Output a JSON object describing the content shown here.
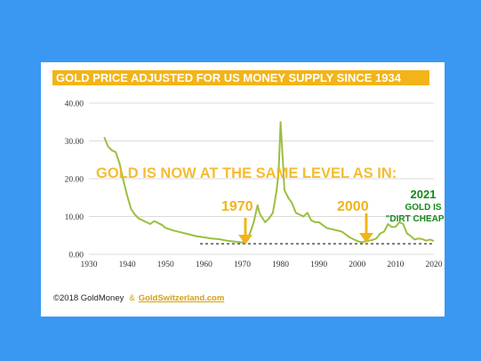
{
  "title": "GOLD PRICE ADJUSTED FOR US MONEY SUPPLY SINCE 1934",
  "colors": {
    "background": "#3a98f2",
    "title_bar": "#f2b418",
    "line": "#9bbf3f",
    "annotation_orange": "#f2b418",
    "annotation_green": "#138a18",
    "baseline": "#333333"
  },
  "annotations": {
    "headline": "GOLD IS NOW AT THE SAME LEVEL AS IN:",
    "year_1970": "1970",
    "year_2000": "2000",
    "year_2021": "2021",
    "gold_is": "GOLD IS",
    "dirt_cheap": "\"DIRT CHEAP\""
  },
  "footer": {
    "copyright": "©2018 GoldMoney",
    "amp": "&",
    "link": "GoldSwitzerland.com"
  },
  "chart_data": {
    "type": "line",
    "title": "GOLD PRICE ADJUSTED FOR US MONEY SUPPLY SINCE 1934",
    "xlabel": "",
    "ylabel": "",
    "xlim": [
      1930,
      2020
    ],
    "ylim": [
      0,
      40
    ],
    "xticks": [
      1930,
      1940,
      1950,
      1960,
      1970,
      1980,
      1990,
      2000,
      2010,
      2020
    ],
    "yticks": [
      0,
      10,
      20,
      30,
      40
    ],
    "ytick_labels": [
      "0.00",
      "10.00",
      "20.00",
      "30.00",
      "40.00"
    ],
    "grid": "horizontal",
    "reference_level": 2.8,
    "series": [
      {
        "x": [
          1934,
          1935,
          1936,
          1937,
          1938,
          1939,
          1940,
          1941,
          1942,
          1943,
          1944,
          1945,
          1946,
          1947,
          1948,
          1949,
          1950,
          1952,
          1954,
          1956,
          1958,
          1960,
          1962,
          1964,
          1966,
          1968,
          1970,
          1971,
          1972,
          1973,
          1974,
          1974.5,
          1975,
          1976,
          1977,
          1978,
          1979,
          1979.5,
          1980,
          1980.3,
          1980.6,
          1981,
          1982,
          1983,
          1984,
          1985,
          1986,
          1987,
          1988,
          1989,
          1990,
          1992,
          1994,
          1996,
          1998,
          1999,
          2000,
          2001,
          2002,
          2003,
          2004,
          2005,
          2006,
          2007,
          2008,
          2009,
          2010,
          2011,
          2012,
          2013,
          2014,
          2015,
          2016,
          2017,
          2018,
          2019,
          2020
        ],
        "y": [
          31,
          28.5,
          27.5,
          27,
          24,
          19.5,
          15.5,
          12,
          10.5,
          9.5,
          9,
          8.5,
          8,
          8.8,
          8.3,
          7.8,
          7,
          6.3,
          5.8,
          5.3,
          4.8,
          4.5,
          4.2,
          4,
          3.6,
          3.4,
          3.1,
          3.6,
          5.5,
          8.5,
          13,
          11,
          10,
          8.5,
          9.5,
          11,
          17,
          22,
          35,
          30,
          25,
          17,
          15,
          13.5,
          11,
          10.5,
          10,
          11,
          9,
          8.5,
          8.5,
          7,
          6.5,
          6,
          4.5,
          4,
          3.5,
          3.2,
          3.4,
          3.6,
          3.8,
          4.2,
          5.5,
          6,
          8,
          7.2,
          7.3,
          8.5,
          8,
          5.5,
          4.8,
          3.9,
          4.2,
          4,
          3.6,
          3.9,
          3.5
        ]
      }
    ]
  }
}
